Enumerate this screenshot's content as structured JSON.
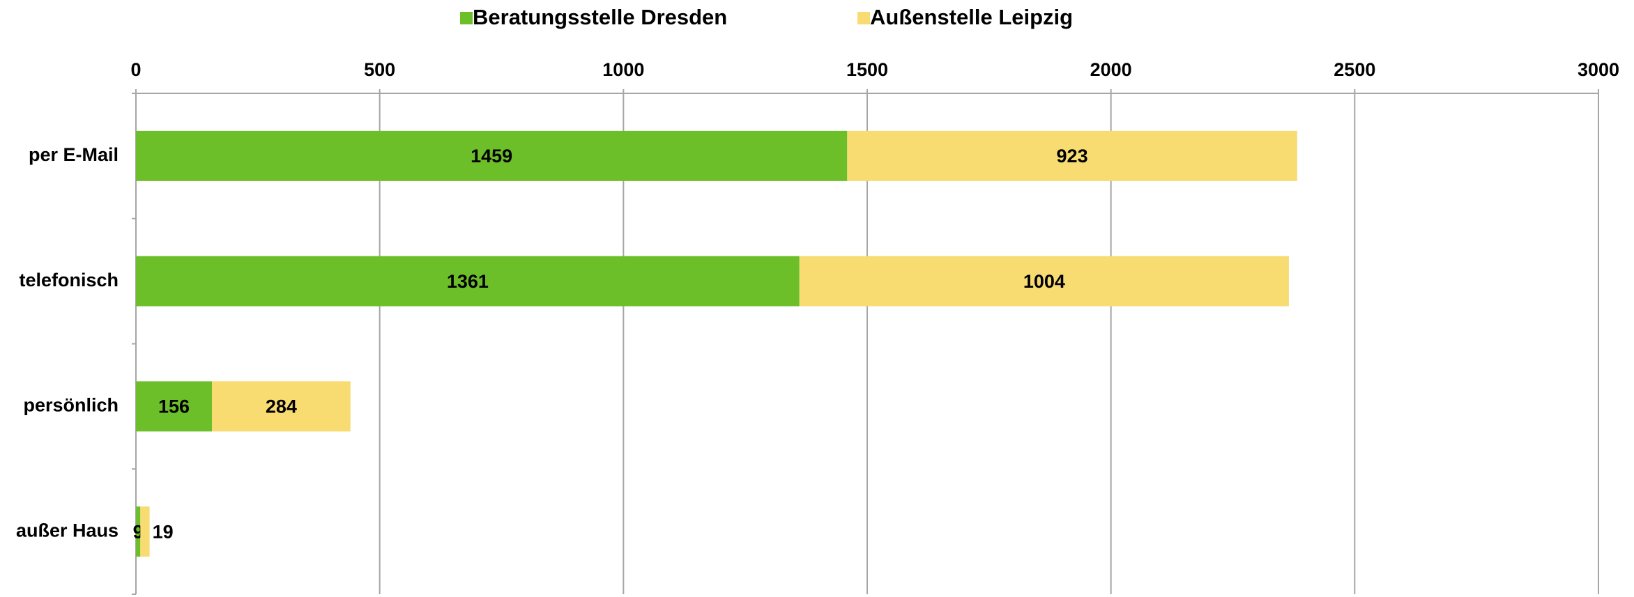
{
  "chart_data": {
    "type": "stacked-bar-horizontal",
    "categories": [
      "per E-Mail",
      "telefonisch",
      "persönlich",
      "außer Haus"
    ],
    "series": [
      {
        "name": "Beratungsstelle Dresden",
        "color": "#6dbf2a",
        "values": [
          1459,
          1361,
          156,
          9
        ]
      },
      {
        "name": "Außenstelle Leipzig",
        "color": "#f8dc72",
        "values": [
          923,
          1004,
          284,
          19
        ]
      }
    ],
    "xlim": [
      0,
      3000
    ],
    "xticks": [
      0,
      500,
      1000,
      1500,
      2000,
      2500,
      3000
    ],
    "grid": true,
    "legend": "top"
  }
}
